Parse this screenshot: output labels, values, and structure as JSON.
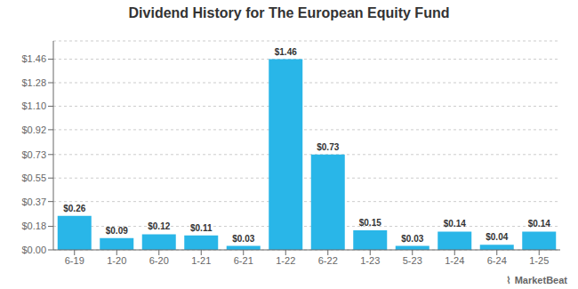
{
  "chart_data": {
    "type": "bar",
    "title": "Dividend History for The European Equity Fund",
    "categories": [
      "6-19",
      "1-20",
      "6-20",
      "1-21",
      "6-21",
      "1-22",
      "6-22",
      "1-23",
      "5-23",
      "1-24",
      "6-24",
      "1-25"
    ],
    "values": [
      0.26,
      0.09,
      0.12,
      0.11,
      0.03,
      1.46,
      0.73,
      0.15,
      0.03,
      0.14,
      0.04,
      0.14
    ],
    "value_labels": [
      "$0.26",
      "$0.09",
      "$0.12",
      "$0.11",
      "$0.03",
      "$1.46",
      "$0.73",
      "$0.15",
      "$0.03",
      "$0.14",
      "$0.04",
      "$0.14"
    ],
    "data_labels": true,
    "color": "#29b6e8",
    "ylim": [
      0,
      1.6
    ],
    "yticks": [
      {
        "value": 0.0,
        "label": "$0.00"
      },
      {
        "value": 0.18,
        "label": "$0.18"
      },
      {
        "value": 0.37,
        "label": "$0.37"
      },
      {
        "value": 0.55,
        "label": "$0.55"
      },
      {
        "value": 0.73,
        "label": "$0.73"
      },
      {
        "value": 0.92,
        "label": "$0.92"
      },
      {
        "value": 1.1,
        "label": "$1.10"
      },
      {
        "value": 1.28,
        "label": "$1.28"
      },
      {
        "value": 1.46,
        "label": "$1.46"
      }
    ],
    "grid": true,
    "annotations": [
      "⌇",
      "MarketBeat"
    ]
  }
}
